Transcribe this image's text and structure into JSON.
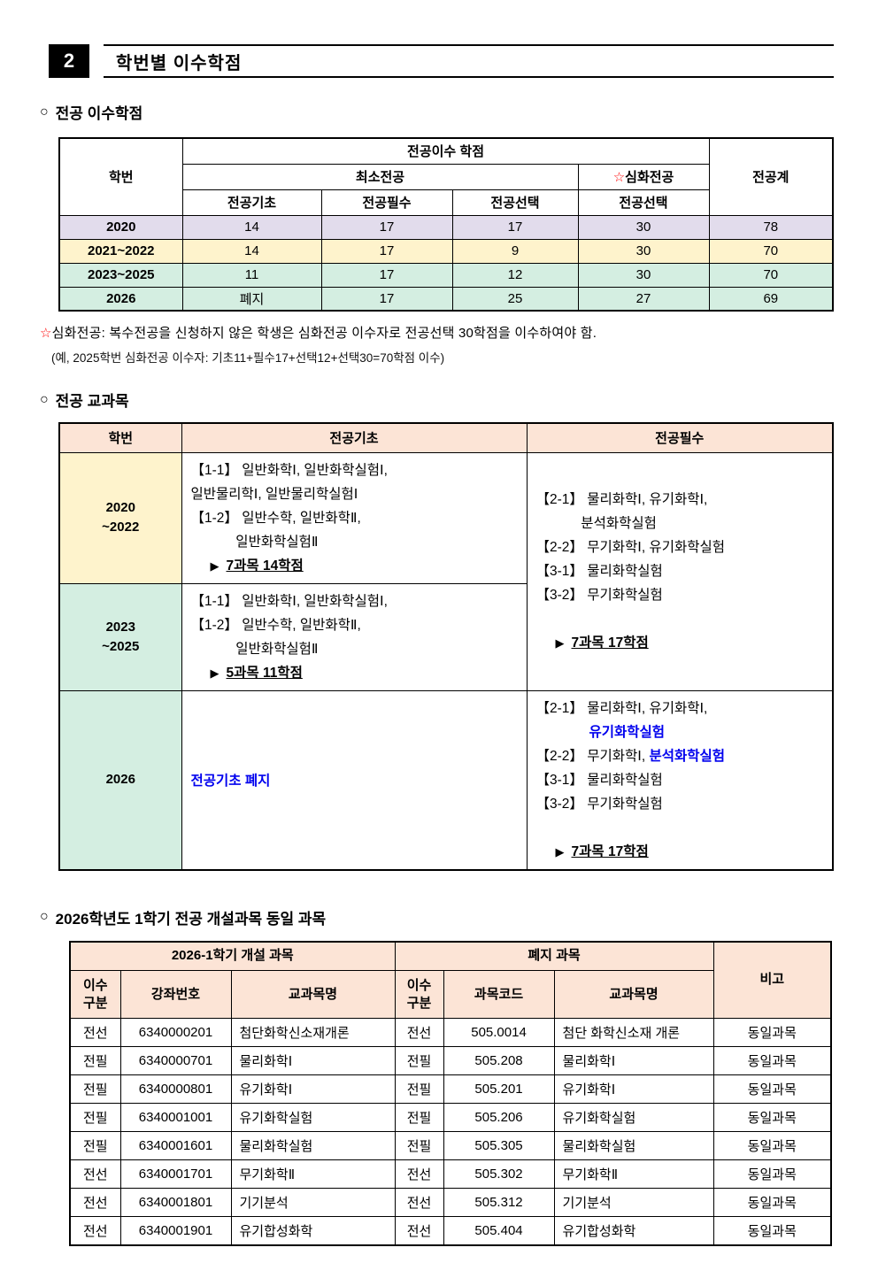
{
  "colors": {
    "accent_blue": "#0000ee",
    "star_red": "#ff0000",
    "header_peach": "#fce4d6",
    "row_lavender": "#e2dcec",
    "row_yellow": "#fef3cc",
    "row_mint": "#d4eee1"
  },
  "page_header": {
    "number": "2",
    "title": "학번별 이수학점"
  },
  "sections": {
    "credits": {
      "bullet": "○",
      "title": "전공 이수학점"
    },
    "courses": {
      "bullet": "○",
      "title": "전공 교과목"
    },
    "same": {
      "bullet": "○",
      "title": "2026학년도 1학기 전공 개설과목 동일 과목"
    }
  },
  "credits_table": {
    "header": {
      "student_id": "학번",
      "credit_group": "전공이수 학점",
      "min_major": "최소전공",
      "deep_star": "☆",
      "deep_major": "심화전공",
      "sub_cols": [
        "전공기초",
        "전공필수",
        "전공선택",
        "전공선택"
      ],
      "total": "전공계"
    },
    "rows": [
      {
        "id": "2020",
        "values": [
          "14",
          "17",
          "17",
          "30",
          "78"
        ],
        "bg": "#e2dcec"
      },
      {
        "id": "2021~2022",
        "values": [
          "14",
          "17",
          "9",
          "30",
          "70"
        ],
        "bg": "#fef3cc"
      },
      {
        "id": "2023~2025",
        "values": [
          "11",
          "17",
          "12",
          "30",
          "70"
        ],
        "bg": "#d4eee1"
      },
      {
        "id": "2026",
        "values": [
          "폐지",
          "17",
          "25",
          "27",
          "69"
        ],
        "bg": "#d4eee1"
      }
    ]
  },
  "notes": {
    "star": "☆",
    "line1": "심화전공: 복수전공을 신청하지 않은 학생은 심화전공 이수자로 전공선택 30학점을 이수하여야 함.",
    "line2": "(예, 2025학번 심화전공 이수자: 기초11+필수17+선택12+선택30=70학점 이수)"
  },
  "courses_table": {
    "headers": {
      "student_id": "학번",
      "gicho": "전공기초",
      "pilsu": "전공필수"
    },
    "marker": "▶",
    "row_2020": {
      "id_line1": "2020",
      "id_line2": "~2022",
      "gicho_lines": [
        "【1-1】 일반화학Ⅰ, 일반화학실험Ⅰ,",
        "일반물리학Ⅰ, 일반물리학실험Ⅰ",
        "【1-2】 일반수학, 일반화학Ⅱ,",
        "　　　 일반화학실험Ⅱ"
      ],
      "summary": "7과목  14학점"
    },
    "row_2023": {
      "id_line1": "2023",
      "id_line2": "~2025",
      "gicho_lines": [
        "【1-1】 일반화학Ⅰ, 일반화학실험Ⅰ,",
        "【1-2】 일반수학, 일반화학Ⅱ,",
        "　　　 일반화학실험Ⅱ"
      ],
      "summary": "5과목  11학점"
    },
    "pilsu_merged": {
      "lines": [
        "【2-1】 물리화학Ⅰ, 유기화학Ⅰ,",
        "　　　 분석화학실험",
        "【2-2】 무기화학Ⅰ, 유기화학실험",
        "【3-1】 물리화학실험",
        "【3-2】 무기화학실험"
      ],
      "summary": "7과목  17학점"
    },
    "row_2026": {
      "id": "2026",
      "gicho_note": "전공기초 폐지",
      "pilsu_l1": "【2-1】 물리화학Ⅰ, 유기화학Ⅰ,",
      "pilsu_l2_blue": "유기화학실험",
      "pilsu_l3a": "【2-2】 무기화학Ⅰ, ",
      "pilsu_l3b_blue": "분석화학실험",
      "pilsu_l4": "【3-1】 물리화학실험",
      "pilsu_l5": "【3-2】 무기화학실험",
      "summary": "7과목  17학점"
    }
  },
  "same_table": {
    "group_headers": {
      "open": "2026-1학기 개설 과목",
      "closed": "폐지 과목",
      "remark": "비고"
    },
    "col_headers": [
      "이수\n구분",
      "강좌번호",
      "교과목명",
      "이수\n구분",
      "과목코드",
      "교과목명"
    ],
    "rows": [
      [
        "전선",
        "6340000201",
        "첨단화학신소재개론",
        "전선",
        "505.0014",
        "첨단 화학신소재 개론",
        "동일과목"
      ],
      [
        "전필",
        "6340000701",
        "물리화학Ⅰ",
        "전필",
        "505.208",
        "물리화학Ⅰ",
        "동일과목"
      ],
      [
        "전필",
        "6340000801",
        "유기화학Ⅰ",
        "전필",
        "505.201",
        "유기화학Ⅰ",
        "동일과목"
      ],
      [
        "전필",
        "6340001001",
        "유기화학실험",
        "전필",
        "505.206",
        "유기화학실험",
        "동일과목"
      ],
      [
        "전필",
        "6340001601",
        "물리화학실험",
        "전필",
        "505.305",
        "물리화학실험",
        "동일과목"
      ],
      [
        "전선",
        "6340001701",
        "무기화학Ⅱ",
        "전선",
        "505.302",
        "무기화학Ⅱ",
        "동일과목"
      ],
      [
        "전선",
        "6340001801",
        "기기분석",
        "전선",
        "505.312",
        "기기분석",
        "동일과목"
      ],
      [
        "전선",
        "6340001901",
        "유기합성화학",
        "전선",
        "505.404",
        "유기합성화학",
        "동일과목"
      ]
    ]
  }
}
